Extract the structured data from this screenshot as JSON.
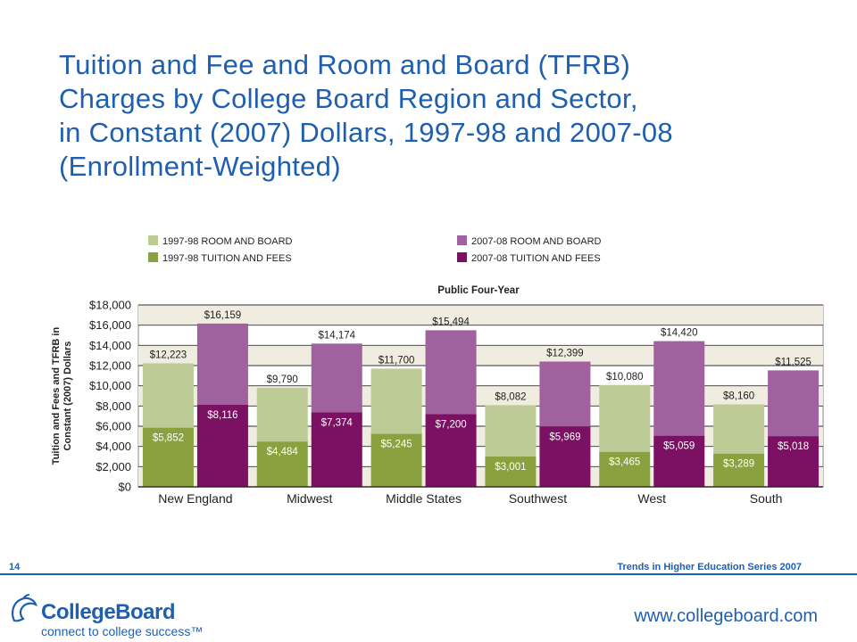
{
  "header": {
    "title_lines": [
      "Tuition and Fee and Room and Board (TFRB)",
      "Charges by College Board Region and Sector,",
      "in Constant (2007) Dollars, 1997-98 and 2007-08",
      "(Enrollment-Weighted)"
    ]
  },
  "footer": {
    "page_number": "14",
    "series": "Trends in Higher Education Series 2007",
    "url": "www.collegeboard.com",
    "logo_word": "CollegeBoard",
    "logo_tagline": "connect to college success™"
  },
  "colors": {
    "rb_1997": "#bdcb96",
    "tf_1997": "#8aa13f",
    "rb_2007": "#a0629e",
    "tf_2007": "#7c1063",
    "title": "#1f5fb0"
  },
  "chart_data": {
    "type": "bar",
    "stacked": true,
    "title": "Public Four-Year",
    "ylabel_lines": [
      "Tuition and Fees and TFRB in",
      "Constant (2007) Dollars"
    ],
    "xlabel": "",
    "ylim": [
      0,
      18000
    ],
    "yticks": [
      0,
      2000,
      4000,
      6000,
      8000,
      10000,
      12000,
      14000,
      16000,
      18000
    ],
    "ytick_labels": [
      "$0",
      "$2,000",
      "$4,000",
      "$6,000",
      "$8,000",
      "$10,000",
      "$12,000",
      "$14,000",
      "$16,000",
      "$18,000"
    ],
    "grid": true,
    "legend": [
      {
        "name": "1997-98 ROOM AND BOARD",
        "color": "#bdcb96"
      },
      {
        "name": "1997-98 TUITION AND FEES",
        "color": "#8aa13f"
      },
      {
        "name": "2007-08 ROOM AND BOARD",
        "color": "#a0629e"
      },
      {
        "name": "2007-08 TUITION AND FEES",
        "color": "#7c1063"
      }
    ],
    "categories": [
      "New England",
      "Midwest",
      "Middle States",
      "Southwest",
      "West",
      "South"
    ],
    "series": [
      {
        "name": "1997-98",
        "tuition_fees": [
          5852,
          4484,
          5245,
          3001,
          3465,
          3289
        ],
        "total": [
          12223,
          9790,
          11700,
          8082,
          10080,
          8160
        ],
        "tf_labels": [
          "$5,852",
          "$4,484",
          "$5,245",
          "$3,001",
          "$3,465",
          "$3,289"
        ],
        "total_labels": [
          "$12,223",
          "$9,790",
          "$11,700",
          "$8,082",
          "$10,080",
          "$8,160"
        ]
      },
      {
        "name": "2007-08",
        "tuition_fees": [
          8116,
          7374,
          7200,
          5969,
          5059,
          5018
        ],
        "total": [
          16159,
          14174,
          15494,
          12399,
          14420,
          11525
        ],
        "tf_labels": [
          "$8,116",
          "$7,374",
          "$7,200",
          "$5,969",
          "$5,059",
          "$5,018"
        ],
        "total_labels": [
          "$16,159",
          "$14,174",
          "$15,494",
          "$12,399",
          "$14,420",
          "$11,525"
        ]
      }
    ]
  }
}
